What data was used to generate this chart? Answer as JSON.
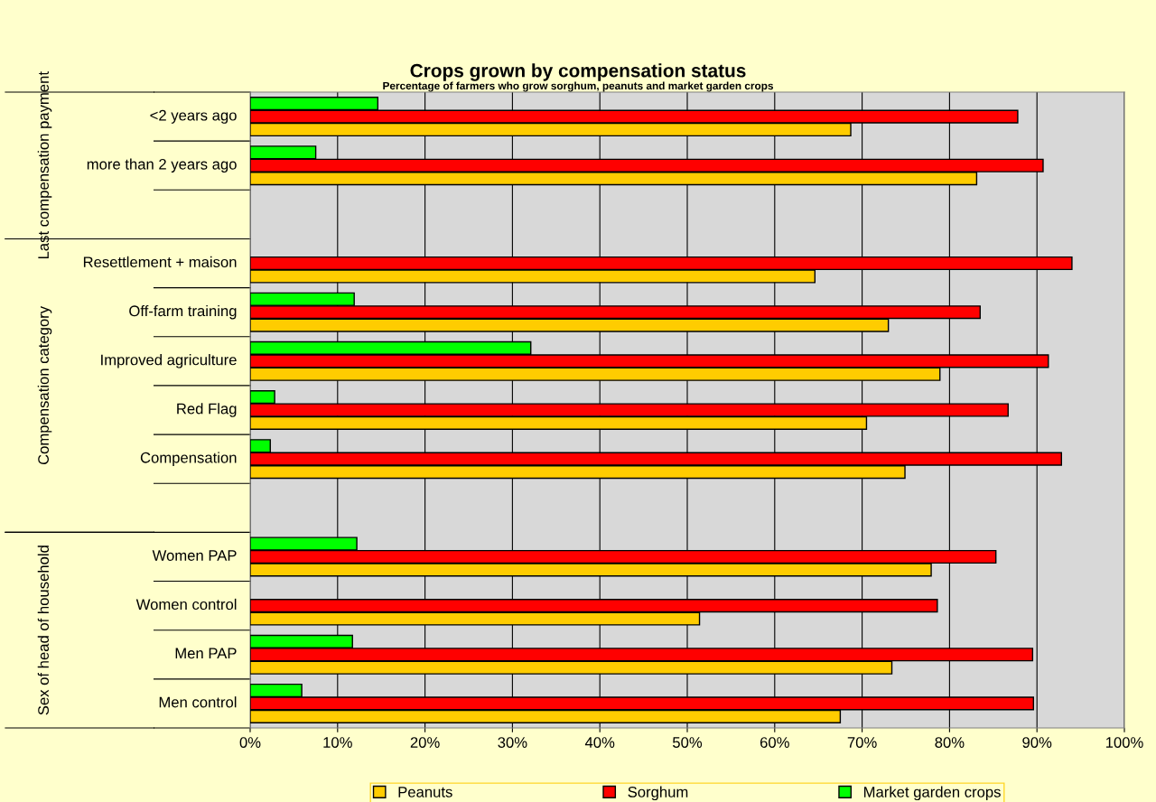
{
  "chart_data": {
    "type": "bar",
    "orientation": "horizontal",
    "title": "Crops grown by compensation status",
    "subtitle": "Percentage of farmers who grow sorghum, peanuts and market garden crops",
    "categories": [
      "<2 years ago",
      "more than 2 years ago",
      null,
      "Resettlement + maison",
      "Off-farm training",
      "Improved agriculture",
      "Red Flag",
      "Compensation",
      null,
      "Women PAP",
      "Women control",
      "Men PAP",
      "Men control"
    ],
    "series": [
      {
        "name": "Peanuts",
        "color": "#ffcc00",
        "values": [
          68.7,
          83.1,
          null,
          64.6,
          73.0,
          78.9,
          70.5,
          74.9,
          null,
          77.9,
          51.4,
          73.4,
          67.5
        ]
      },
      {
        "name": "Sorghum",
        "color": "#ff0000",
        "values": [
          87.8,
          90.7,
          null,
          94.0,
          83.5,
          91.3,
          86.7,
          92.8,
          null,
          85.3,
          78.6,
          89.5,
          89.6
        ]
      },
      {
        "name": "Market garden crops",
        "color": "#00ff00",
        "values": [
          14.6,
          7.5,
          null,
          null,
          11.9,
          32.1,
          2.8,
          2.3,
          null,
          12.2,
          null,
          11.7,
          5.9
        ]
      }
    ],
    "xlim": [
      0,
      100
    ],
    "xticks": [
      {
        "value": 0,
        "label": "0%"
      },
      {
        "value": 10,
        "label": "10%"
      },
      {
        "value": 20,
        "label": "20%"
      },
      {
        "value": 30,
        "label": "30%"
      },
      {
        "value": 40,
        "label": "40%"
      },
      {
        "value": 50,
        "label": "50%"
      },
      {
        "value": 60,
        "label": "60%"
      },
      {
        "value": 70,
        "label": "70%"
      },
      {
        "value": 80,
        "label": "80%"
      },
      {
        "value": 90,
        "label": "90%"
      },
      {
        "value": 100,
        "label": "100%"
      }
    ],
    "annotations": [
      "Last compensation payment",
      "Compensation category",
      "Sex of head of household"
    ],
    "grid": "x",
    "legend": "bottom"
  }
}
